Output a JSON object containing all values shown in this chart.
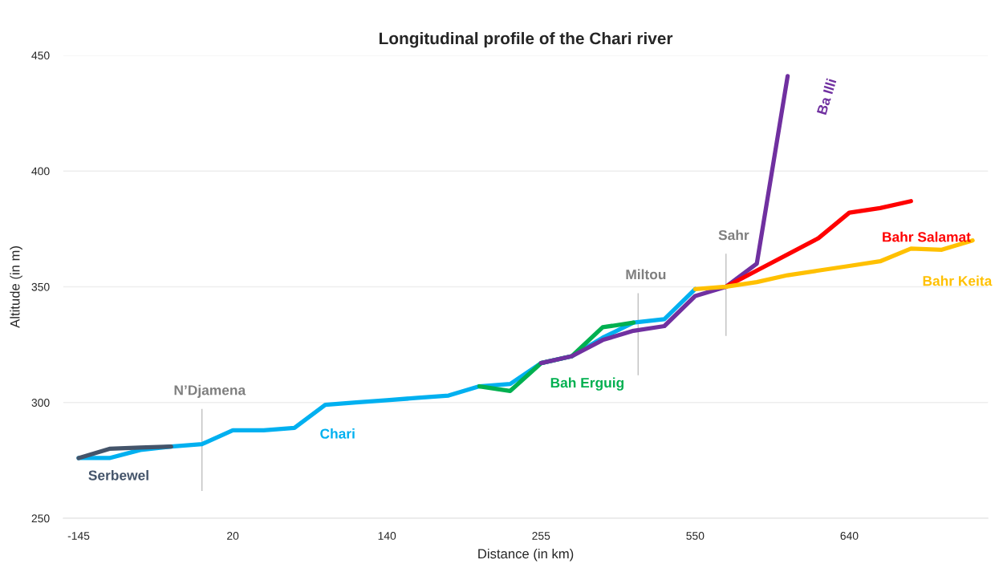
{
  "chart_data": {
    "type": "line",
    "title": "Longitudinal profile of the Chari river",
    "xlabel": "Distance (in km)",
    "ylabel": "Altitude (in m)",
    "categories": [
      "-145",
      null,
      null,
      null,
      null,
      "20",
      null,
      null,
      null,
      null,
      "140",
      null,
      null,
      null,
      null,
      "255",
      null,
      null,
      null,
      null,
      "550",
      null,
      null,
      null,
      null,
      "640",
      null,
      null,
      null,
      null
    ],
    "series": [
      {
        "name": "Chari",
        "color": "#00b0f0",
        "values": [
          276,
          276,
          279.5,
          281,
          282,
          288,
          288,
          289,
          299,
          300,
          301,
          302,
          303,
          307,
          308,
          317,
          320,
          328,
          334.5,
          336,
          349,
          null,
          null,
          null,
          null,
          null,
          null,
          null,
          null,
          null
        ]
      },
      {
        "name": "Serbewel",
        "color": "#44546a",
        "values": [
          276,
          280,
          280.5,
          281,
          null,
          null,
          null,
          null,
          null,
          null,
          null,
          null,
          null,
          null,
          null,
          null,
          null,
          null,
          null,
          null,
          null,
          null,
          null,
          null,
          null,
          null,
          null,
          null,
          null,
          null
        ]
      },
      {
        "name": "Bah Erguig",
        "color": "#00b050",
        "values": [
          null,
          null,
          null,
          null,
          null,
          null,
          null,
          null,
          null,
          null,
          null,
          null,
          null,
          307,
          305,
          317,
          320,
          332.5,
          334.5,
          null,
          null,
          null,
          null,
          null,
          null,
          null,
          null,
          null,
          null,
          null
        ]
      },
      {
        "name": "Ba Illi",
        "color": "#7030a0",
        "values": [
          null,
          null,
          null,
          null,
          null,
          null,
          null,
          null,
          null,
          null,
          null,
          null,
          null,
          null,
          null,
          317,
          320,
          327,
          331,
          333,
          346,
          350,
          360,
          441,
          null,
          null,
          null,
          null,
          null,
          null
        ]
      },
      {
        "name": "Bahr Salamat",
        "color": "#ff0000",
        "values": [
          null,
          null,
          null,
          null,
          null,
          null,
          null,
          null,
          null,
          null,
          null,
          null,
          null,
          null,
          null,
          null,
          null,
          null,
          null,
          null,
          null,
          350,
          357,
          364,
          371,
          382,
          384,
          387,
          null,
          null
        ]
      },
      {
        "name": "Bahr Keita",
        "color": "#ffc000",
        "values": [
          null,
          null,
          null,
          null,
          null,
          null,
          null,
          null,
          null,
          null,
          null,
          null,
          null,
          null,
          null,
          null,
          null,
          null,
          null,
          null,
          349,
          350,
          352,
          355,
          357,
          359,
          361,
          366.5,
          366,
          370
        ]
      }
    ],
    "ylim": [
      250,
      450
    ],
    "yticks": [
      250,
      300,
      350,
      400,
      450
    ],
    "grid": "y",
    "legend": false,
    "marker": "none",
    "line_style": "solid",
    "annotations": [
      "N’Djamena",
      "Miltou",
      "Sahr"
    ]
  }
}
